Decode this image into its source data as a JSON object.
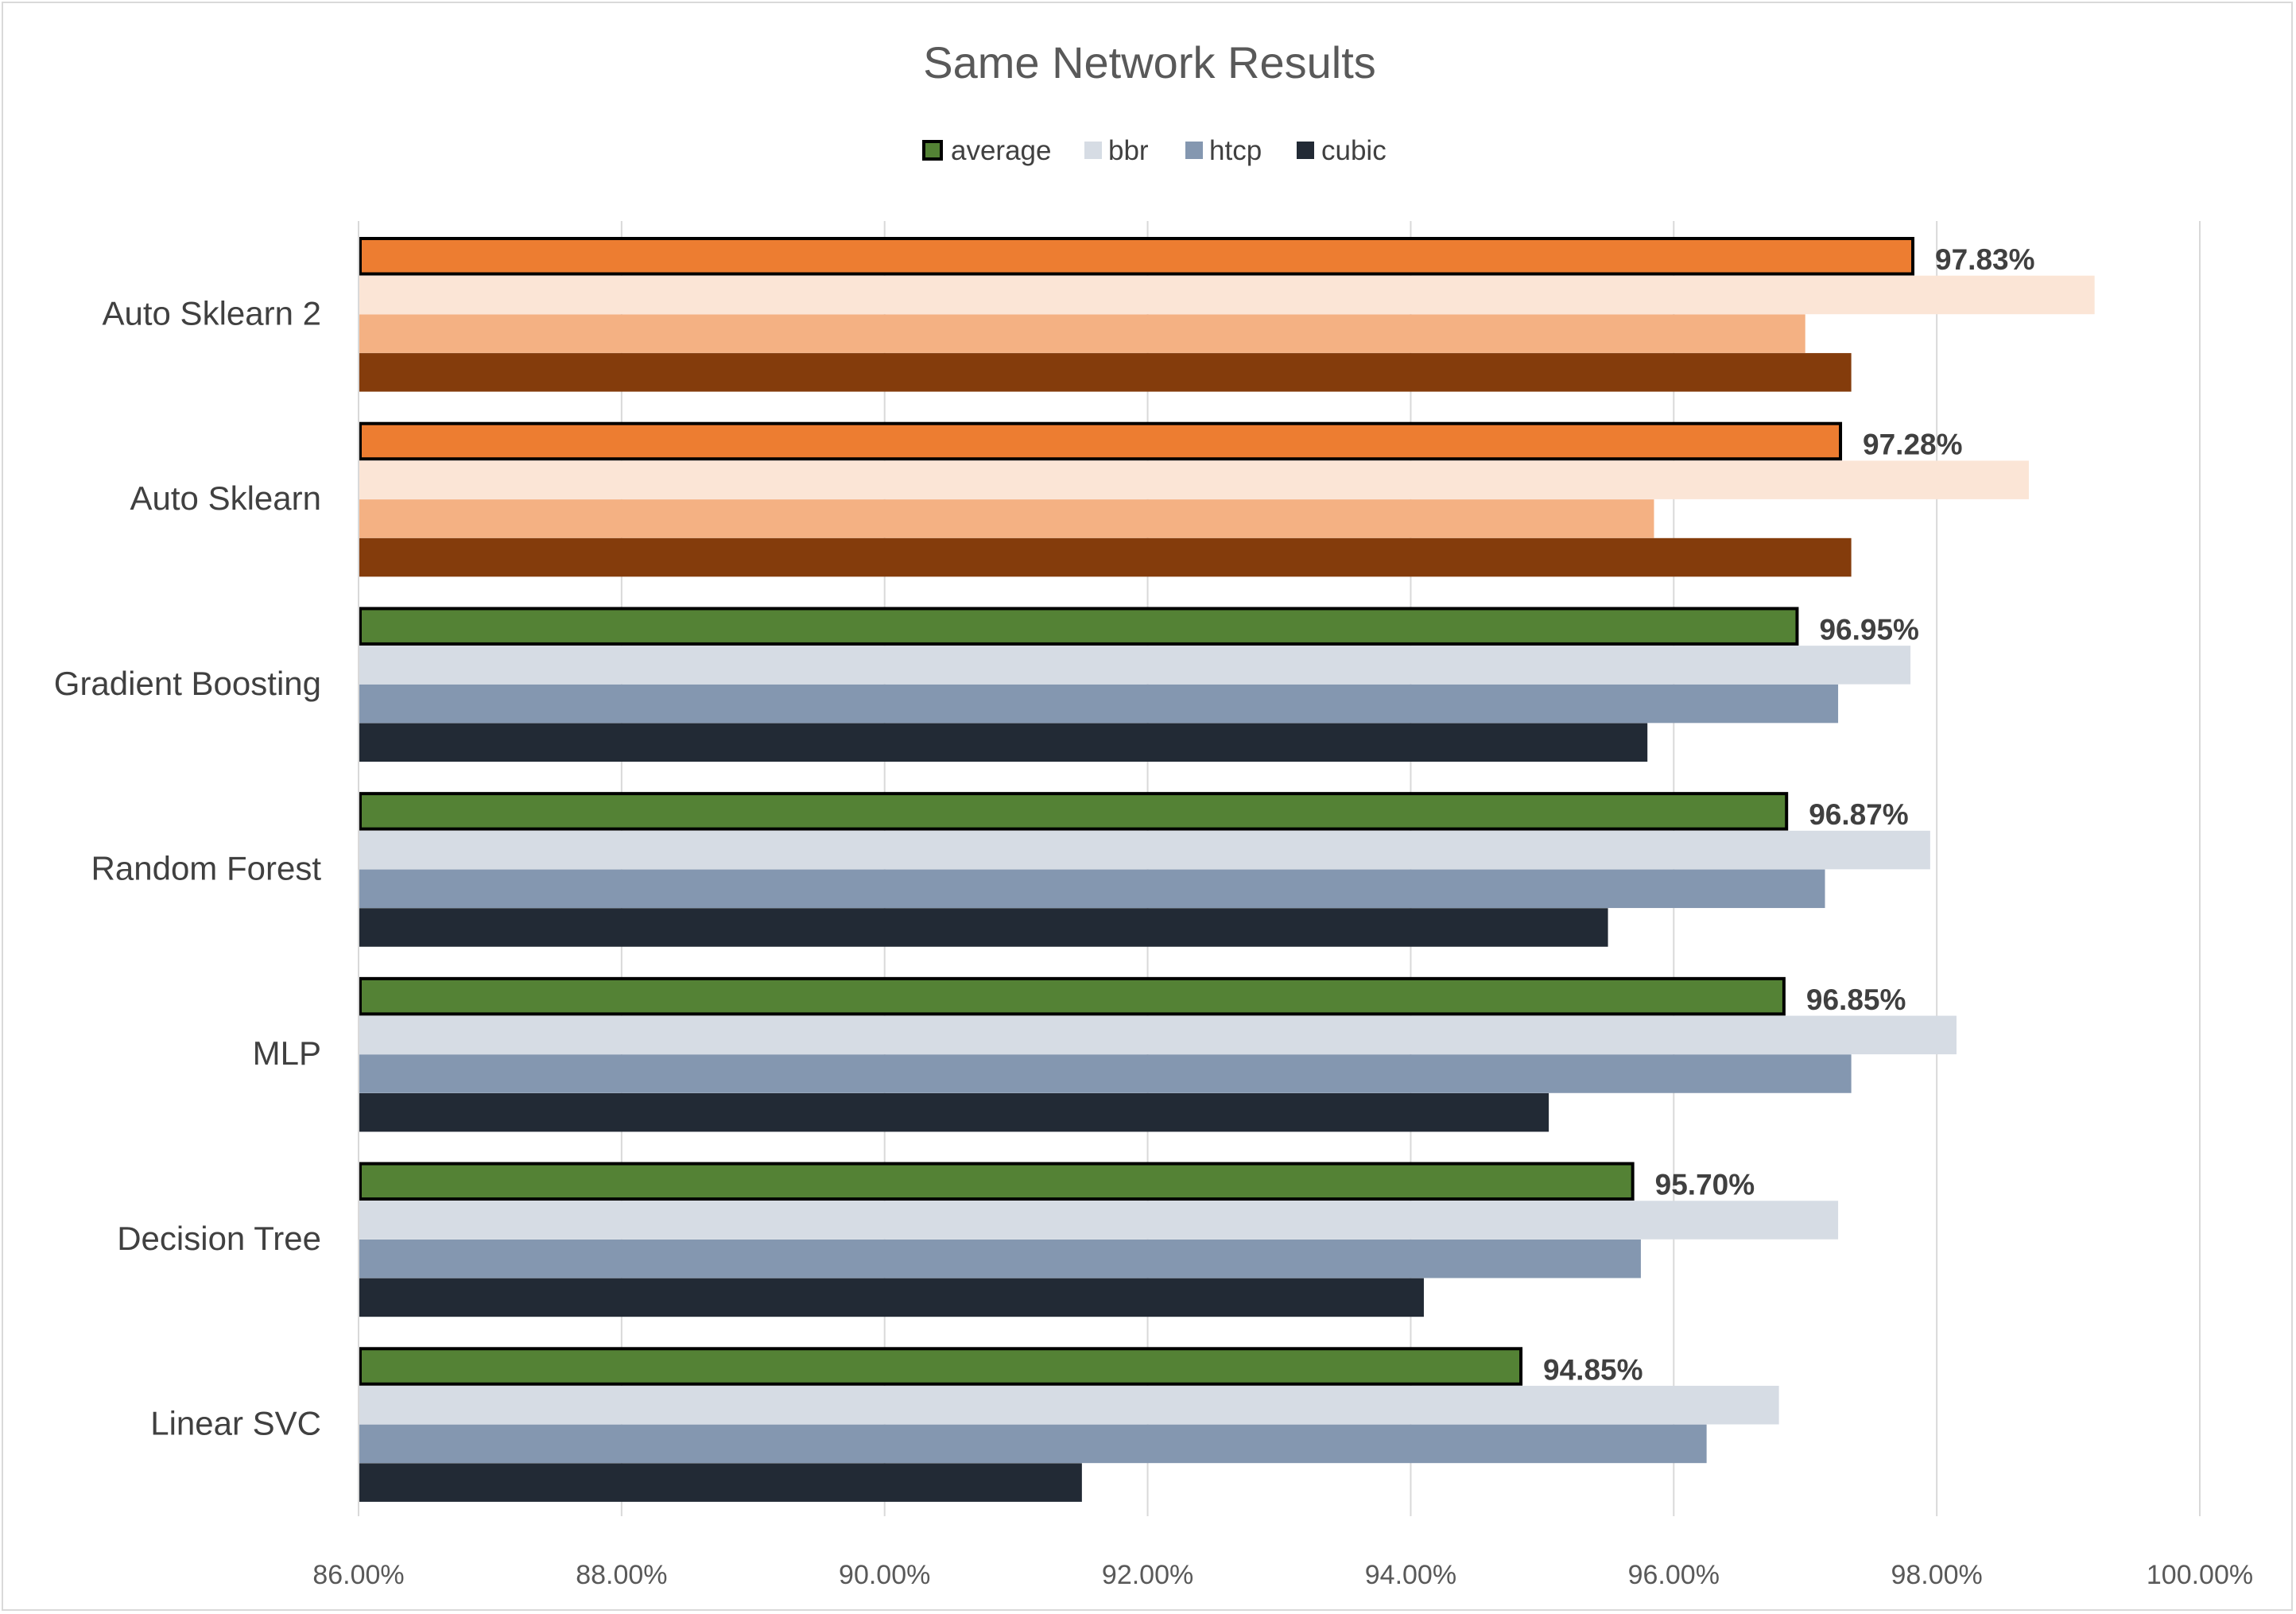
{
  "chart_data": {
    "type": "bar",
    "orientation": "horizontal",
    "title": "Same Network Results",
    "xlabel": "",
    "ylabel": "",
    "xlim": [
      86,
      100
    ],
    "x_ticks": [
      86,
      88,
      90,
      92,
      94,
      96,
      98,
      100
    ],
    "x_tick_labels": [
      "86.00%",
      "88.00%",
      "90.00%",
      "92.00%",
      "94.00%",
      "96.00%",
      "98.00%",
      "100.00%"
    ],
    "grid": "vertical",
    "legend_position": "top",
    "categories": [
      "Auto Sklearn 2",
      "Auto Sklearn",
      "Gradient Boosting",
      "Random Forest",
      "MLP",
      "Decision Tree",
      "Linear SVC"
    ],
    "series": [
      {
        "name": "average",
        "color": "#548235",
        "values": [
          97.83,
          97.28,
          96.95,
          96.87,
          96.85,
          95.7,
          94.85
        ]
      },
      {
        "name": "bbr",
        "color": "#d6dce4",
        "values": [
          99.2,
          98.7,
          97.8,
          97.95,
          98.15,
          97.25,
          96.8
        ]
      },
      {
        "name": "htcp",
        "color": "#8497b0",
        "values": [
          97.0,
          95.85,
          97.25,
          97.15,
          97.35,
          95.75,
          96.25
        ]
      },
      {
        "name": "cubic",
        "color": "#222a35",
        "values": [
          97.35,
          97.35,
          95.8,
          95.5,
          95.05,
          94.1,
          91.5
        ]
      }
    ],
    "highlight_colors": {
      "average": "#ed7d31",
      "bbr": "#fbe5d6",
      "htcp": "#f4b183",
      "cubic": "#843c0c"
    },
    "highlighted_categories": [
      "Auto Sklearn 2",
      "Auto Sklearn"
    ],
    "data_labels": [
      "97.83%",
      "97.28%",
      "96.95%",
      "96.87%",
      "96.85%",
      "95.70%",
      "94.85%"
    ]
  }
}
